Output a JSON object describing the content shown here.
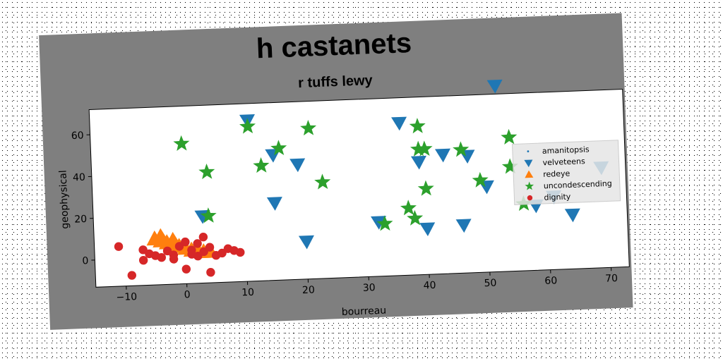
{
  "chart_data": {
    "type": "scatter",
    "title": "h castanets",
    "subtitle": "r tuffs lewy",
    "xlabel": "bourreau",
    "ylabel": "geophysical",
    "xlim": [
      -15,
      73
    ],
    "ylim": [
      -13,
      72
    ],
    "xticks": [
      "−10",
      "0",
      "10",
      "20",
      "30",
      "40",
      "50",
      "60",
      "70"
    ],
    "xtick_values": [
      -10,
      0,
      10,
      20,
      30,
      40,
      50,
      60,
      70
    ],
    "yticks": [
      "0",
      "20",
      "40",
      "60"
    ],
    "ytick_values": [
      0,
      20,
      40,
      60
    ],
    "grid": false,
    "legend_position": "right",
    "series": [
      {
        "name": "amanitopsis",
        "marker": "point",
        "color": "#1f77b4",
        "points": []
      },
      {
        "name": "velveteens",
        "marker": "triangle-down",
        "color": "#1f77b4",
        "points": [
          [
            11,
            64
          ],
          [
            15,
            47
          ],
          [
            15,
            24
          ],
          [
            19,
            42
          ],
          [
            20,
            5
          ],
          [
            3,
            19
          ],
          [
            32,
            13
          ],
          [
            36,
            60
          ],
          [
            39,
            41
          ],
          [
            40,
            9
          ],
          [
            43,
            44
          ],
          [
            46,
            10
          ],
          [
            47,
            43
          ],
          [
            50,
            28
          ],
          [
            52,
            76
          ],
          [
            58,
            18
          ],
          [
            61,
            22
          ],
          [
            64,
            13
          ],
          [
            69,
            35
          ]
        ]
      },
      {
        "name": "redeye",
        "marker": "triangle-up",
        "color": "#ff7f0e",
        "points": [
          [
            -5,
            9
          ],
          [
            -4,
            8
          ],
          [
            -3,
            7
          ],
          [
            -2,
            6
          ],
          [
            -1,
            5
          ],
          [
            0,
            4
          ],
          [
            1,
            3
          ],
          [
            2,
            3
          ],
          [
            3,
            2
          ],
          [
            4,
            2
          ],
          [
            -4,
            10
          ],
          [
            -2,
            8
          ]
        ]
      },
      {
        "name": "uncondescending",
        "marker": "star",
        "color": "#2ca02c",
        "points": [
          [
            0,
            54
          ],
          [
            4,
            40
          ],
          [
            4,
            19
          ],
          [
            11,
            61
          ],
          [
            13,
            42
          ],
          [
            16,
            50
          ],
          [
            21,
            59
          ],
          [
            23,
            33
          ],
          [
            33,
            12
          ],
          [
            37,
            19
          ],
          [
            38,
            14
          ],
          [
            39,
            58
          ],
          [
            39,
            47
          ],
          [
            40,
            47
          ],
          [
            40,
            28
          ],
          [
            46,
            46
          ],
          [
            49,
            31
          ],
          [
            54,
            51
          ],
          [
            54,
            37
          ],
          [
            56,
            19
          ]
        ]
      },
      {
        "name": "dignity",
        "marker": "circle",
        "color": "#d62728",
        "points": [
          [
            -11,
            6
          ],
          [
            -9,
            -8
          ],
          [
            -7,
            -1
          ],
          [
            -7,
            4
          ],
          [
            -6,
            2
          ],
          [
            -5,
            1
          ],
          [
            -4,
            0
          ],
          [
            -3,
            3
          ],
          [
            -2,
            1
          ],
          [
            -1,
            5
          ],
          [
            0,
            -6
          ],
          [
            0,
            7
          ],
          [
            1,
            3
          ],
          [
            2,
            0
          ],
          [
            2,
            6
          ],
          [
            3,
            9
          ],
          [
            3,
            2
          ],
          [
            4,
            -8
          ],
          [
            4,
            4
          ],
          [
            5,
            0
          ],
          [
            6,
            1
          ],
          [
            7,
            3
          ],
          [
            8,
            2
          ],
          [
            9,
            1
          ],
          [
            -2,
            -1
          ],
          [
            1,
            1
          ]
        ]
      }
    ]
  }
}
